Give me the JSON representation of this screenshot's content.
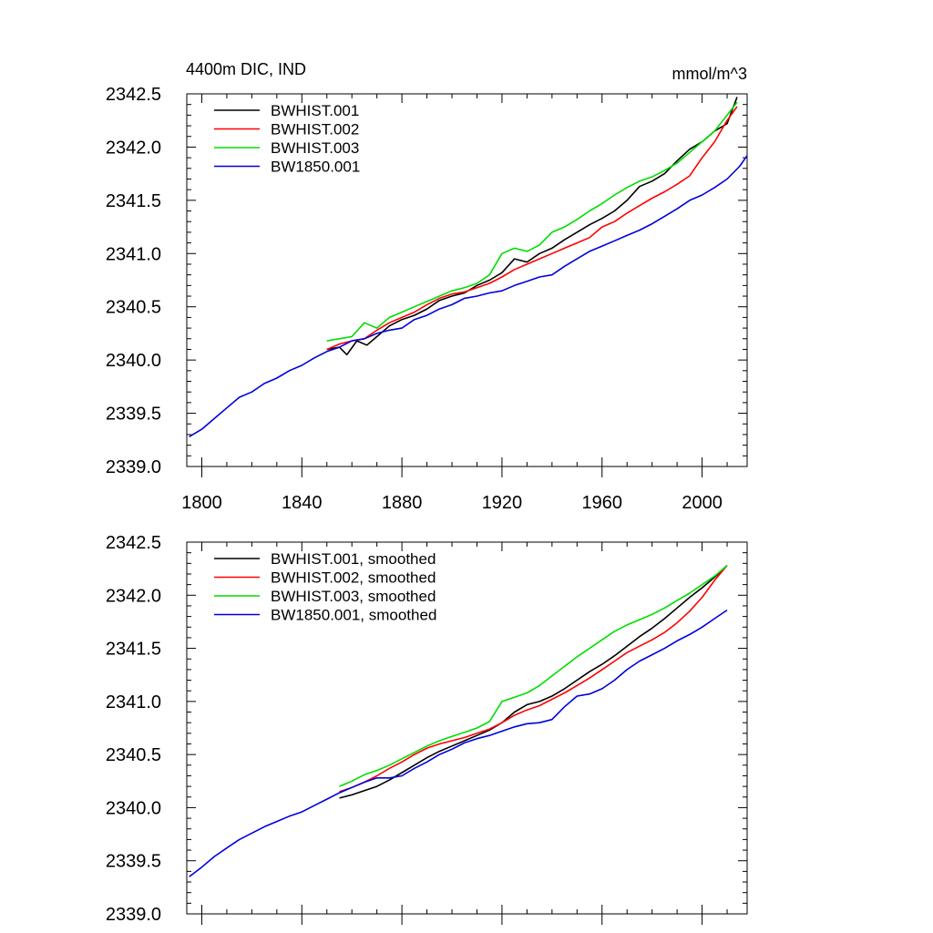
{
  "chart_data": [
    {
      "type": "line",
      "title": "4400m DIC, IND",
      "units_label": "mmol/m^3",
      "xlabel": "",
      "ylabel": "",
      "xlim": [
        1794,
        2018
      ],
      "ylim": [
        2339.0,
        2342.5
      ],
      "xticks": [
        "1800",
        "1840",
        "1880",
        "1920",
        "1960",
        "2000"
      ],
      "yticks": [
        "2339.0",
        "2339.5",
        "2340.0",
        "2340.5",
        "2341.0",
        "2341.5",
        "2342.0",
        "2342.5"
      ],
      "show_xtick_labels": true,
      "grid": false,
      "legend": "top-left",
      "series": [
        {
          "name": "BWHIST.001",
          "color": "#000000",
          "x": [
            1850,
            1855,
            1858,
            1862,
            1866,
            1870,
            1875,
            1880,
            1885,
            1890,
            1895,
            1900,
            1905,
            1910,
            1915,
            1920,
            1925,
            1930,
            1935,
            1940,
            1945,
            1950,
            1955,
            1960,
            1965,
            1970,
            1975,
            1980,
            1985,
            1990,
            1995,
            2000,
            2005,
            2010,
            2014
          ],
          "y": [
            2340.1,
            2340.12,
            2340.05,
            2340.18,
            2340.14,
            2340.22,
            2340.32,
            2340.38,
            2340.42,
            2340.48,
            2340.56,
            2340.6,
            2340.63,
            2340.7,
            2340.75,
            2340.82,
            2340.95,
            2340.92,
            2341.0,
            2341.05,
            2341.13,
            2341.2,
            2341.27,
            2341.33,
            2341.4,
            2341.5,
            2341.63,
            2341.68,
            2341.75,
            2341.87,
            2341.98,
            2342.05,
            2342.15,
            2342.22,
            2342.47
          ]
        },
        {
          "name": "BWHIST.002",
          "color": "#ff0000",
          "x": [
            1850,
            1855,
            1860,
            1865,
            1870,
            1875,
            1880,
            1885,
            1890,
            1895,
            1900,
            1905,
            1910,
            1915,
            1920,
            1925,
            1930,
            1935,
            1940,
            1945,
            1950,
            1955,
            1960,
            1965,
            1970,
            1975,
            1980,
            1985,
            1990,
            1995,
            2000,
            2005,
            2010,
            2014
          ],
          "y": [
            2340.1,
            2340.15,
            2340.18,
            2340.2,
            2340.28,
            2340.35,
            2340.4,
            2340.45,
            2340.52,
            2340.58,
            2340.62,
            2340.64,
            2340.68,
            2340.72,
            2340.78,
            2340.85,
            2340.9,
            2340.95,
            2341.0,
            2341.05,
            2341.1,
            2341.15,
            2341.25,
            2341.3,
            2341.38,
            2341.45,
            2341.52,
            2341.58,
            2341.65,
            2341.73,
            2341.9,
            2342.05,
            2342.25,
            2342.38
          ]
        },
        {
          "name": "BWHIST.003",
          "color": "#00dd00",
          "x": [
            1850,
            1855,
            1860,
            1865,
            1870,
            1875,
            1880,
            1885,
            1890,
            1895,
            1900,
            1905,
            1910,
            1915,
            1920,
            1925,
            1930,
            1935,
            1940,
            1945,
            1950,
            1955,
            1960,
            1965,
            1970,
            1975,
            1980,
            1985,
            1990,
            1995,
            2000,
            2005,
            2010,
            2014
          ],
          "y": [
            2340.18,
            2340.2,
            2340.22,
            2340.35,
            2340.3,
            2340.4,
            2340.45,
            2340.5,
            2340.55,
            2340.6,
            2340.65,
            2340.68,
            2340.72,
            2340.8,
            2341.0,
            2341.05,
            2341.02,
            2341.08,
            2341.2,
            2341.25,
            2341.32,
            2341.4,
            2341.47,
            2341.55,
            2341.62,
            2341.68,
            2341.72,
            2341.78,
            2341.85,
            2341.95,
            2342.05,
            2342.15,
            2342.3,
            2342.42
          ]
        },
        {
          "name": "BW1850.001",
          "color": "#0000dd",
          "x": [
            1795,
            1800,
            1805,
            1810,
            1815,
            1820,
            1825,
            1830,
            1835,
            1840,
            1845,
            1850,
            1855,
            1860,
            1865,
            1870,
            1875,
            1880,
            1885,
            1890,
            1895,
            1900,
            1905,
            1910,
            1915,
            1920,
            1925,
            1930,
            1935,
            1940,
            1945,
            1950,
            1955,
            1960,
            1965,
            1970,
            1975,
            1980,
            1985,
            1990,
            1995,
            2000,
            2005,
            2010,
            2015,
            2018
          ],
          "y": [
            2339.28,
            2339.35,
            2339.45,
            2339.55,
            2339.65,
            2339.7,
            2339.78,
            2339.83,
            2339.9,
            2339.95,
            2340.02,
            2340.08,
            2340.12,
            2340.18,
            2340.2,
            2340.25,
            2340.28,
            2340.3,
            2340.38,
            2340.42,
            2340.48,
            2340.52,
            2340.58,
            2340.6,
            2340.63,
            2340.65,
            2340.7,
            2340.74,
            2340.78,
            2340.8,
            2340.88,
            2340.95,
            2341.02,
            2341.07,
            2341.12,
            2341.17,
            2341.22,
            2341.28,
            2341.35,
            2341.42,
            2341.5,
            2341.55,
            2341.62,
            2341.7,
            2341.82,
            2341.92
          ]
        }
      ]
    },
    {
      "type": "line",
      "title": "",
      "xlabel": "",
      "ylabel": "",
      "xlim": [
        1794,
        2018
      ],
      "ylim": [
        2339.0,
        2342.5
      ],
      "xticks": [
        "1800",
        "1840",
        "1880",
        "1920",
        "1960",
        "2000"
      ],
      "yticks": [
        "2339.0",
        "2339.5",
        "2340.0",
        "2340.5",
        "2341.0",
        "2341.5",
        "2342.0",
        "2342.5"
      ],
      "show_xtick_labels": false,
      "grid": false,
      "legend": "top-left",
      "series": [
        {
          "name": "BWHIST.001, smoothed",
          "color": "#000000",
          "x": [
            1855,
            1860,
            1865,
            1870,
            1875,
            1880,
            1885,
            1890,
            1895,
            1900,
            1905,
            1910,
            1915,
            1920,
            1925,
            1930,
            1935,
            1940,
            1945,
            1950,
            1955,
            1960,
            1965,
            1970,
            1975,
            1980,
            1985,
            1990,
            1995,
            2000,
            2005,
            2010
          ],
          "y": [
            2340.09,
            2340.12,
            2340.16,
            2340.2,
            2340.26,
            2340.33,
            2340.4,
            2340.47,
            2340.53,
            2340.58,
            2340.63,
            2340.68,
            2340.73,
            2340.8,
            2340.9,
            2340.97,
            2341.0,
            2341.05,
            2341.12,
            2341.2,
            2341.28,
            2341.35,
            2341.43,
            2341.52,
            2341.61,
            2341.69,
            2341.78,
            2341.88,
            2341.98,
            2342.07,
            2342.17,
            2342.28
          ]
        },
        {
          "name": "BWHIST.002, smoothed",
          "color": "#ff0000",
          "x": [
            1855,
            1860,
            1865,
            1870,
            1875,
            1880,
            1885,
            1890,
            1895,
            1900,
            1905,
            1910,
            1915,
            1920,
            1925,
            1930,
            1935,
            1940,
            1945,
            1950,
            1955,
            1960,
            1965,
            1970,
            1975,
            1980,
            1985,
            1990,
            1995,
            2000,
            2005,
            2010
          ],
          "y": [
            2340.15,
            2340.19,
            2340.24,
            2340.3,
            2340.37,
            2340.43,
            2340.5,
            2340.56,
            2340.6,
            2340.63,
            2340.66,
            2340.7,
            2340.74,
            2340.8,
            2340.87,
            2340.92,
            2340.96,
            2341.02,
            2341.08,
            2341.15,
            2341.22,
            2341.3,
            2341.38,
            2341.46,
            2341.52,
            2341.58,
            2341.65,
            2341.74,
            2341.85,
            2341.98,
            2342.14,
            2342.28
          ]
        },
        {
          "name": "BWHIST.003, smoothed",
          "color": "#00dd00",
          "x": [
            1855,
            1860,
            1865,
            1870,
            1875,
            1880,
            1885,
            1890,
            1895,
            1900,
            1905,
            1910,
            1915,
            1920,
            1925,
            1930,
            1935,
            1940,
            1945,
            1950,
            1955,
            1960,
            1965,
            1970,
            1975,
            1980,
            1985,
            1990,
            1995,
            2000,
            2005,
            2010
          ],
          "y": [
            2340.2,
            2340.25,
            2340.31,
            2340.35,
            2340.4,
            2340.46,
            2340.52,
            2340.58,
            2340.63,
            2340.67,
            2340.71,
            2340.75,
            2340.81,
            2341.0,
            2341.04,
            2341.08,
            2341.15,
            2341.24,
            2341.33,
            2341.42,
            2341.5,
            2341.58,
            2341.66,
            2341.72,
            2341.77,
            2341.82,
            2341.88,
            2341.95,
            2342.02,
            2342.1,
            2342.18,
            2342.28
          ]
        },
        {
          "name": "BW1850.001, smoothed",
          "color": "#0000dd",
          "x": [
            1795,
            1800,
            1805,
            1810,
            1815,
            1820,
            1825,
            1830,
            1835,
            1840,
            1845,
            1850,
            1855,
            1860,
            1865,
            1870,
            1875,
            1880,
            1885,
            1890,
            1895,
            1900,
            1905,
            1910,
            1915,
            1920,
            1925,
            1930,
            1935,
            1940,
            1945,
            1950,
            1955,
            1960,
            1965,
            1970,
            1975,
            1980,
            1985,
            1990,
            1995,
            2000,
            2005,
            2010
          ],
          "y": [
            2339.35,
            2339.44,
            2339.54,
            2339.62,
            2339.7,
            2339.76,
            2339.82,
            2339.87,
            2339.92,
            2339.96,
            2340.02,
            2340.08,
            2340.14,
            2340.19,
            2340.24,
            2340.28,
            2340.28,
            2340.3,
            2340.37,
            2340.43,
            2340.5,
            2340.55,
            2340.61,
            2340.65,
            2340.68,
            2340.72,
            2340.76,
            2340.79,
            2340.8,
            2340.83,
            2340.95,
            2341.05,
            2341.07,
            2341.12,
            2341.2,
            2341.3,
            2341.38,
            2341.44,
            2341.5,
            2341.57,
            2341.63,
            2341.7,
            2341.78,
            2341.86
          ]
        }
      ]
    }
  ]
}
